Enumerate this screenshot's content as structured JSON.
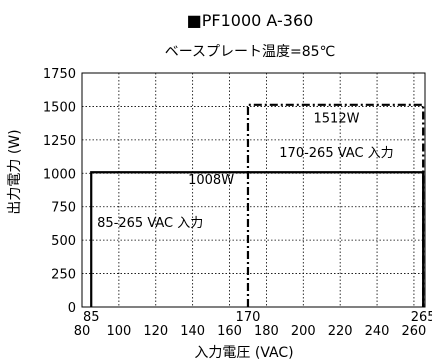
{
  "chart_data": {
    "type": "line",
    "title": "■PF1000 A-360",
    "subtitle": "ベースプレート温度=85℃",
    "xlabel": "入力電圧 (VAC)",
    "ylabel": "出力電力 (W)",
    "xlim": [
      80,
      266
    ],
    "ylim": [
      0,
      1750
    ],
    "x_ticks": [
      80,
      100,
      120,
      140,
      160,
      180,
      200,
      220,
      240,
      260
    ],
    "y_ticks": [
      0,
      250,
      500,
      750,
      1000,
      1250,
      1500,
      1750
    ],
    "x_markers": [
      85,
      170,
      265
    ],
    "grid": true,
    "series": [
      {
        "style": "solid",
        "points": [
          [
            85,
            0
          ],
          [
            85,
            1008
          ],
          [
            265,
            1008
          ],
          [
            265,
            0
          ]
        ]
      },
      {
        "style": "dash-dot",
        "points": [
          [
            170,
            0
          ],
          [
            170,
            1512
          ],
          [
            265,
            1512
          ],
          [
            265,
            0
          ]
        ]
      }
    ],
    "annotations": [
      {
        "text": "1008W",
        "x": 150,
        "y": 920
      },
      {
        "text": "85-265 VAC 入力",
        "x": 117,
        "y": 600
      },
      {
        "text": "1512W",
        "x": 218,
        "y": 1380
      },
      {
        "text": "170-265 VAC 入力",
        "x": 218,
        "y": 1120
      }
    ]
  }
}
